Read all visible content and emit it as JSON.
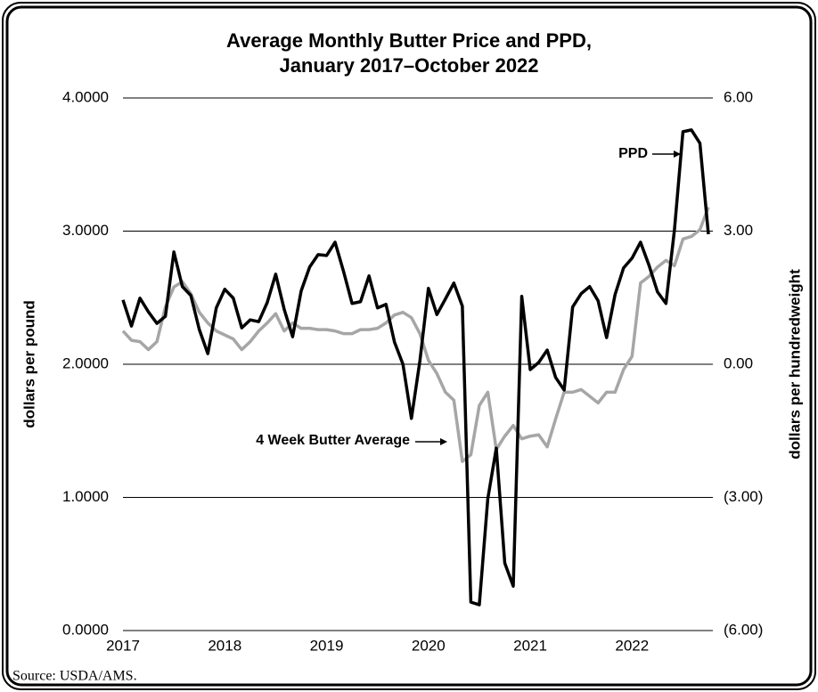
{
  "chart_data": {
    "type": "line",
    "title": [
      "Average Monthly Butter Price and PPD,",
      "January 2017–October 2022"
    ],
    "y_label": "dollars per pound",
    "y2_label": "dollars per hundredweight",
    "source": "Source: USDA/AMS.",
    "annotations": [
      "PPD",
      "4 Week Butter Average"
    ],
    "categories": [
      "2017",
      null,
      null,
      null,
      null,
      null,
      null,
      null,
      null,
      null,
      null,
      null,
      "2018",
      null,
      null,
      null,
      null,
      null,
      null,
      null,
      null,
      null,
      null,
      null,
      "2019",
      null,
      null,
      null,
      null,
      null,
      null,
      null,
      null,
      null,
      null,
      null,
      "2020",
      null,
      null,
      null,
      null,
      null,
      null,
      null,
      null,
      null,
      null,
      null,
      "2021",
      null,
      null,
      null,
      null,
      null,
      null,
      null,
      null,
      null,
      null,
      null,
      "2022",
      null,
      null,
      null,
      null,
      null,
      null,
      null,
      null,
      null
    ],
    "ylim": [
      0,
      4
    ],
    "yticks": [
      {
        "value": 0,
        "label": "0.0000"
      },
      {
        "value": 1,
        "label": "1.0000"
      },
      {
        "value": 2,
        "label": "2.0000"
      },
      {
        "value": 3,
        "label": "3.0000"
      },
      {
        "value": 4,
        "label": "4.0000"
      }
    ],
    "y2lim": [
      -6,
      6
    ],
    "y2ticks": [
      {
        "value": -6,
        "label": "(6.00)"
      },
      {
        "value": -3,
        "label": "(3.00)"
      },
      {
        "value": 0,
        "label": "0.00"
      },
      {
        "value": 3,
        "label": "3.00"
      },
      {
        "value": 6,
        "label": "6.00"
      }
    ],
    "grid": true,
    "series": [
      {
        "name": "4 Week Butter Average",
        "color": "#a6a6a6",
        "axis": "y",
        "values": [
          2.25,
          2.18,
          2.17,
          2.11,
          2.17,
          2.43,
          2.58,
          2.62,
          2.53,
          2.39,
          2.31,
          2.25,
          2.22,
          2.19,
          2.11,
          2.17,
          2.25,
          2.31,
          2.38,
          2.25,
          2.31,
          2.27,
          2.27,
          2.26,
          2.26,
          2.25,
          2.23,
          2.23,
          2.26,
          2.26,
          2.27,
          2.31,
          2.37,
          2.39,
          2.35,
          2.23,
          2.03,
          1.93,
          1.79,
          1.73,
          1.27,
          1.32,
          1.69,
          1.79,
          1.36,
          1.46,
          1.54,
          1.44,
          1.46,
          1.47,
          1.38,
          1.59,
          1.79,
          1.79,
          1.81,
          1.76,
          1.71,
          1.79,
          1.79,
          1.96,
          2.06,
          2.61,
          2.66,
          2.73,
          2.78,
          2.74,
          2.94,
          2.96,
          3.01,
          3.18
        ]
      },
      {
        "name": "PPD",
        "color": "#000000",
        "axis": "y2",
        "values": [
          1.45,
          0.86,
          1.49,
          1.18,
          0.92,
          1.08,
          2.53,
          1.75,
          1.55,
          0.78,
          0.24,
          1.27,
          1.69,
          1.49,
          0.82,
          1.0,
          0.96,
          1.39,
          2.03,
          1.24,
          0.62,
          1.65,
          2.19,
          2.47,
          2.45,
          2.75,
          2.09,
          1.37,
          1.41,
          1.99,
          1.27,
          1.35,
          0.5,
          0.0,
          -1.22,
          0.08,
          1.71,
          1.12,
          1.47,
          1.83,
          1.31,
          -5.36,
          -5.42,
          -3.03,
          -1.89,
          -4.48,
          -5.0,
          1.53,
          -0.12,
          0.04,
          0.32,
          -0.3,
          -0.58,
          1.29,
          1.59,
          1.75,
          1.43,
          0.6,
          1.57,
          2.17,
          2.39,
          2.75,
          2.23,
          1.63,
          1.37,
          3.03,
          5.24,
          5.28,
          4.98,
          2.93
        ]
      }
    ]
  }
}
